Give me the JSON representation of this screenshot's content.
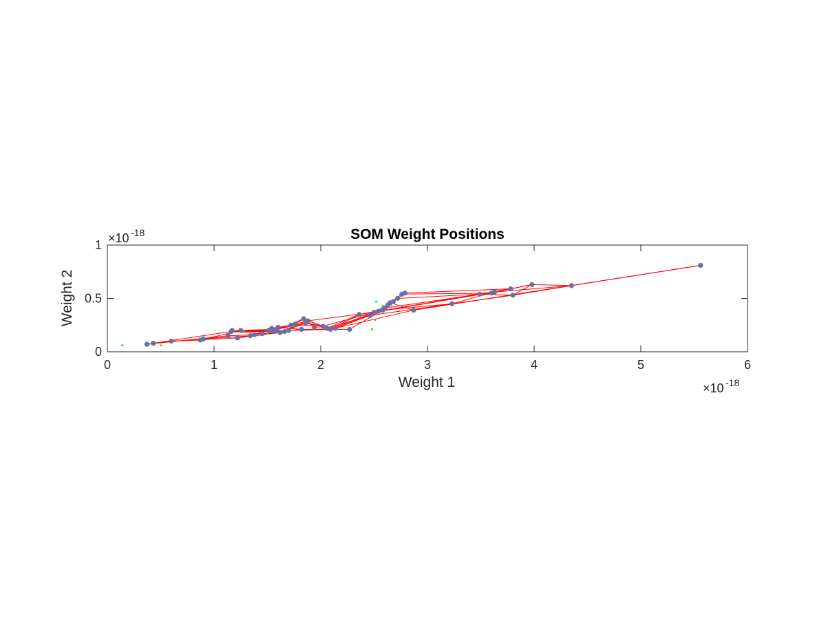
{
  "chart_data": {
    "type": "scatter",
    "title": "SOM Weight Positions",
    "xlabel": "Weight 1",
    "ylabel": "Weight 2",
    "xlim": [
      0,
      6
    ],
    "ylim": [
      0,
      1
    ],
    "x_multiplier": "×10",
    "x_exponent": "-18",
    "y_multiplier": "×10",
    "y_exponent": "-18",
    "xticks": [
      0,
      1,
      2,
      3,
      4,
      5,
      6
    ],
    "xtick_labels": [
      "0",
      "1",
      "2",
      "3",
      "4",
      "5",
      "6"
    ],
    "yticks": [
      0,
      0.5,
      1
    ],
    "ytick_labels": [
      "0",
      "0.5",
      "1"
    ],
    "grid": false,
    "colors": {
      "neurons": "#6b6fa8",
      "links": "#ff0000",
      "inputs": "#33dd33"
    },
    "series": [
      {
        "kind": "input-points",
        "x": [
          0.14,
          0.5,
          0.42,
          1.28,
          1.5,
          2.48,
          2.51,
          2.52,
          2.58,
          2.66,
          5.57
        ],
        "y": [
          0.06,
          0.06,
          0.09,
          0.2,
          0.17,
          0.21,
          0.3,
          0.47,
          0.43,
          0.44,
          0.82
        ]
      },
      {
        "kind": "neuron-weights",
        "x": [
          0.37,
          0.43,
          0.6,
          0.87,
          0.9,
          1.13,
          1.16,
          1.17,
          1.22,
          1.25,
          1.34,
          1.38,
          1.45,
          1.51,
          1.54,
          1.56,
          1.58,
          1.6,
          1.62,
          1.66,
          1.7,
          1.72,
          1.76,
          1.82,
          1.84,
          1.86,
          1.88,
          1.94,
          2.02,
          2.06,
          2.09,
          2.14,
          2.27,
          2.36,
          2.46,
          2.5,
          2.54,
          2.58,
          2.6,
          2.63,
          2.65,
          2.68,
          2.72,
          2.76,
          2.79,
          2.87,
          3.23,
          3.49,
          3.6,
          3.63,
          3.78,
          3.8,
          3.98,
          4.35,
          5.56
        ],
        "y": [
          0.07,
          0.08,
          0.1,
          0.11,
          0.12,
          0.15,
          0.19,
          0.2,
          0.13,
          0.2,
          0.15,
          0.16,
          0.17,
          0.2,
          0.22,
          0.19,
          0.21,
          0.23,
          0.18,
          0.19,
          0.2,
          0.25,
          0.26,
          0.21,
          0.31,
          0.27,
          0.29,
          0.23,
          0.24,
          0.22,
          0.21,
          0.22,
          0.21,
          0.35,
          0.34,
          0.37,
          0.38,
          0.39,
          0.41,
          0.44,
          0.46,
          0.47,
          0.5,
          0.54,
          0.55,
          0.39,
          0.45,
          0.54,
          0.55,
          0.56,
          0.59,
          0.53,
          0.63,
          0.62,
          0.81
        ]
      }
    ],
    "links": [
      [
        0,
        1
      ],
      [
        1,
        2
      ],
      [
        2,
        3
      ],
      [
        3,
        4
      ],
      [
        4,
        5
      ],
      [
        5,
        7
      ],
      [
        7,
        9
      ],
      [
        9,
        13
      ],
      [
        13,
        16
      ],
      [
        16,
        19
      ],
      [
        19,
        22
      ],
      [
        22,
        24
      ],
      [
        24,
        27
      ],
      [
        27,
        30
      ],
      [
        30,
        33
      ],
      [
        33,
        35
      ],
      [
        35,
        38
      ],
      [
        38,
        41
      ],
      [
        41,
        44
      ],
      [
        44,
        50
      ],
      [
        50,
        52
      ],
      [
        52,
        53
      ],
      [
        53,
        54
      ],
      [
        54,
        45
      ],
      [
        45,
        30
      ],
      [
        30,
        20
      ],
      [
        20,
        12
      ],
      [
        12,
        6
      ],
      [
        6,
        1
      ],
      [
        2,
        8
      ],
      [
        8,
        10
      ],
      [
        10,
        14
      ],
      [
        14,
        17
      ],
      [
        17,
        21
      ],
      [
        21,
        26
      ],
      [
        26,
        28
      ],
      [
        28,
        31
      ],
      [
        31,
        36
      ],
      [
        36,
        39
      ],
      [
        39,
        42
      ],
      [
        42,
        47
      ],
      [
        47,
        51
      ],
      [
        51,
        53
      ],
      [
        53,
        49
      ],
      [
        49,
        46
      ],
      [
        46,
        34
      ],
      [
        34,
        29
      ],
      [
        29,
        25
      ],
      [
        25,
        18
      ],
      [
        18,
        11
      ],
      [
        11,
        5
      ],
      [
        3,
        9
      ],
      [
        9,
        15
      ],
      [
        15,
        23
      ],
      [
        23,
        32
      ],
      [
        32,
        37
      ],
      [
        37,
        40
      ],
      [
        40,
        43
      ],
      [
        43,
        48
      ],
      [
        48,
        50
      ],
      [
        50,
        36
      ],
      [
        36,
        28
      ],
      [
        28,
        21
      ],
      [
        21,
        13
      ],
      [
        13,
        7
      ],
      [
        0,
        5
      ],
      [
        6,
        15
      ],
      [
        15,
        24
      ],
      [
        24,
        29
      ],
      [
        29,
        33
      ],
      [
        33,
        37
      ],
      [
        37,
        46
      ],
      [
        46,
        51
      ],
      [
        51,
        52
      ],
      [
        52,
        49
      ],
      [
        49,
        35
      ],
      [
        35,
        26
      ],
      [
        26,
        18
      ],
      [
        18,
        8
      ],
      [
        4,
        10
      ],
      [
        10,
        17
      ],
      [
        17,
        23
      ],
      [
        23,
        30
      ],
      [
        30,
        38
      ],
      [
        38,
        47
      ],
      [
        47,
        50
      ],
      [
        7,
        16
      ],
      [
        16,
        25
      ],
      [
        25,
        31
      ],
      [
        31,
        34
      ],
      [
        34,
        40
      ],
      [
        40,
        45
      ],
      [
        45,
        53
      ]
    ]
  }
}
